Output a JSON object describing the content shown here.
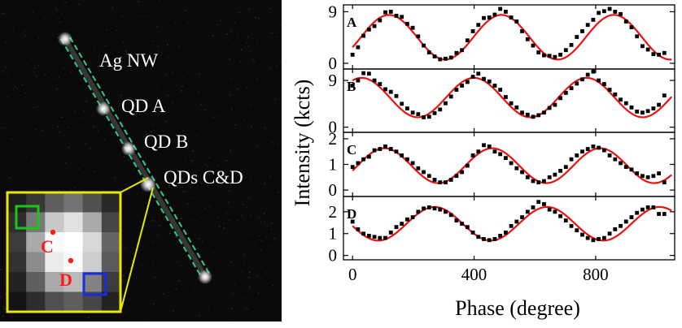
{
  "image": {
    "labels": {
      "nanowire": "Ag NW",
      "qd_a": "QD A",
      "qd_b": "QD B",
      "qd_cd": "QDs C&D",
      "inset_c": "C",
      "inset_d": "D"
    },
    "colors": {
      "nanowire_dash": "#35c98a",
      "inset_frame": "#e8e800",
      "marker": "#ff1a1a",
      "box_c": "#18c718",
      "box_d": "#1a2ae0"
    }
  },
  "chart_data": {
    "type": "scatter",
    "xlabel": "Phase (degree)",
    "ylabel": "Intensity (kcts)",
    "xlim": [
      -30,
      1060
    ],
    "xticks": [
      0,
      400,
      800
    ],
    "fit_color": "#ee1111",
    "point_color": "#000000",
    "panels": [
      {
        "name": "A",
        "ylim": [
          -1,
          10.2
        ],
        "yticks": [
          0,
          9
        ],
        "fit": {
          "offset": 4.55,
          "amplitude": 3.9,
          "period": 370,
          "peak_phase": 120
        },
        "points": [
          [
            0,
            1.5
          ],
          [
            18,
            2.8
          ],
          [
            36,
            4.8
          ],
          [
            54,
            5.9
          ],
          [
            72,
            6.5
          ],
          [
            90,
            7.5
          ],
          [
            108,
            8.9
          ],
          [
            126,
            9.0
          ],
          [
            144,
            8.3
          ],
          [
            162,
            8.1
          ],
          [
            180,
            6.9
          ],
          [
            198,
            6.2
          ],
          [
            216,
            4.7
          ],
          [
            234,
            3.1
          ],
          [
            252,
            1.9
          ],
          [
            270,
            1.2
          ],
          [
            288,
            0.7
          ],
          [
            306,
            0.8
          ],
          [
            324,
            1.0
          ],
          [
            342,
            1.8
          ],
          [
            360,
            2.3
          ],
          [
            378,
            4.0
          ],
          [
            396,
            5.6
          ],
          [
            414,
            6.7
          ],
          [
            432,
            7.9
          ],
          [
            450,
            8.0
          ],
          [
            468,
            8.5
          ],
          [
            486,
            9.5
          ],
          [
            504,
            9.0
          ],
          [
            522,
            8.0
          ],
          [
            540,
            7.3
          ],
          [
            558,
            5.6
          ],
          [
            576,
            4.2
          ],
          [
            594,
            3.1
          ],
          [
            612,
            1.9
          ],
          [
            630,
            1.4
          ],
          [
            648,
            1.3
          ],
          [
            666,
            1.1
          ],
          [
            684,
            1.5
          ],
          [
            702,
            2.3
          ],
          [
            720,
            3.2
          ],
          [
            738,
            4.6
          ],
          [
            756,
            5.6
          ],
          [
            774,
            6.7
          ],
          [
            792,
            7.6
          ],
          [
            810,
            8.8
          ],
          [
            828,
            9.1
          ],
          [
            846,
            9.5
          ],
          [
            864,
            9.0
          ],
          [
            882,
            8.6
          ],
          [
            900,
            7.3
          ],
          [
            918,
            6.3
          ],
          [
            936,
            4.7
          ],
          [
            954,
            3.0
          ],
          [
            972,
            2.4
          ],
          [
            990,
            1.6
          ],
          [
            1008,
            1.5
          ],
          [
            1026,
            1.8
          ]
        ]
      },
      {
        "name": "B",
        "ylim": [
          -1,
          11.2
        ],
        "yticks": [
          0,
          9
        ],
        "fit": {
          "offset": 5.7,
          "amplitude": 3.8,
          "period": 370,
          "peak_phase": 30
        },
        "points": [
          [
            0,
            8.0
          ],
          [
            18,
            9.0
          ],
          [
            36,
            10.4
          ],
          [
            54,
            10.3
          ],
          [
            72,
            9.0
          ],
          [
            90,
            8.3
          ],
          [
            108,
            7.3
          ],
          [
            126,
            6.8
          ],
          [
            144,
            6.0
          ],
          [
            162,
            4.5
          ],
          [
            180,
            3.6
          ],
          [
            198,
            2.8
          ],
          [
            216,
            2.5
          ],
          [
            234,
            1.9
          ],
          [
            252,
            2.0
          ],
          [
            270,
            2.7
          ],
          [
            288,
            3.4
          ],
          [
            306,
            4.6
          ],
          [
            324,
            5.9
          ],
          [
            342,
            7.2
          ],
          [
            360,
            8.0
          ],
          [
            378,
            8.7
          ],
          [
            396,
            9.7
          ],
          [
            414,
            10.3
          ],
          [
            432,
            9.3
          ],
          [
            450,
            8.8
          ],
          [
            468,
            8.0
          ],
          [
            486,
            7.2
          ],
          [
            504,
            5.8
          ],
          [
            522,
            4.6
          ],
          [
            540,
            3.8
          ],
          [
            558,
            2.8
          ],
          [
            576,
            2.4
          ],
          [
            594,
            2.0
          ],
          [
            612,
            2.3
          ],
          [
            630,
            2.8
          ],
          [
            648,
            3.7
          ],
          [
            666,
            4.3
          ],
          [
            684,
            5.6
          ],
          [
            702,
            6.6
          ],
          [
            720,
            7.5
          ],
          [
            738,
            8.4
          ],
          [
            756,
            9.2
          ],
          [
            774,
            10.1
          ],
          [
            792,
            10.7
          ],
          [
            810,
            9.0
          ],
          [
            828,
            8.3
          ],
          [
            846,
            7.2
          ],
          [
            864,
            6.3
          ],
          [
            882,
            5.3
          ],
          [
            900,
            4.6
          ],
          [
            918,
            3.8
          ],
          [
            936,
            3.0
          ],
          [
            954,
            2.8
          ],
          [
            972,
            3.1
          ],
          [
            990,
            3.6
          ],
          [
            1008,
            4.3
          ],
          [
            1026,
            6.1
          ]
        ]
      },
      {
        "name": "C",
        "ylim": [
          -0.25,
          2.25
        ],
        "yticks": [
          0,
          1,
          2
        ],
        "fit": {
          "offset": 0.95,
          "amplitude": 0.68,
          "period": 355,
          "peak_phase": 105
        },
        "points": [
          [
            0,
            0.9
          ],
          [
            18,
            1.05
          ],
          [
            36,
            1.2
          ],
          [
            54,
            1.3
          ],
          [
            72,
            1.55
          ],
          [
            90,
            1.6
          ],
          [
            108,
            1.7
          ],
          [
            126,
            1.6
          ],
          [
            144,
            1.5
          ],
          [
            162,
            1.35
          ],
          [
            180,
            1.2
          ],
          [
            198,
            1.05
          ],
          [
            216,
            0.85
          ],
          [
            234,
            0.7
          ],
          [
            252,
            0.55
          ],
          [
            270,
            0.4
          ],
          [
            288,
            0.3
          ],
          [
            306,
            0.3
          ],
          [
            324,
            0.4
          ],
          [
            342,
            0.55
          ],
          [
            360,
            0.7
          ],
          [
            378,
            0.95
          ],
          [
            396,
            1.35
          ],
          [
            414,
            1.5
          ],
          [
            432,
            1.75
          ],
          [
            450,
            1.7
          ],
          [
            468,
            1.5
          ],
          [
            486,
            1.4
          ],
          [
            504,
            1.25
          ],
          [
            522,
            1.05
          ],
          [
            540,
            0.85
          ],
          [
            558,
            0.7
          ],
          [
            576,
            0.5
          ],
          [
            594,
            0.35
          ],
          [
            612,
            0.3
          ],
          [
            630,
            0.35
          ],
          [
            648,
            0.5
          ],
          [
            666,
            0.6
          ],
          [
            684,
            0.75
          ],
          [
            702,
            0.9
          ],
          [
            720,
            1.2
          ],
          [
            738,
            1.35
          ],
          [
            756,
            1.5
          ],
          [
            774,
            1.6
          ],
          [
            792,
            1.7
          ],
          [
            810,
            1.65
          ],
          [
            828,
            1.55
          ],
          [
            846,
            1.35
          ],
          [
            864,
            1.2
          ],
          [
            882,
            1.05
          ],
          [
            900,
            0.9
          ],
          [
            918,
            0.8
          ],
          [
            936,
            0.65
          ],
          [
            954,
            0.55
          ],
          [
            972,
            0.5
          ],
          [
            990,
            0.55
          ],
          [
            1008,
            0.65
          ],
          [
            1026,
            0.3
          ]
        ]
      },
      {
        "name": "D",
        "ylim": [
          -0.2,
          2.7
        ],
        "yticks": [
          0,
          1,
          2
        ],
        "fit": {
          "offset": 1.45,
          "amplitude": 0.77,
          "period": 370,
          "peak_phase": 270
        },
        "points": [
          [
            0,
            1.55
          ],
          [
            18,
            1.2
          ],
          [
            36,
            1.0
          ],
          [
            54,
            0.9
          ],
          [
            72,
            0.85
          ],
          [
            90,
            0.8
          ],
          [
            108,
            0.8
          ],
          [
            126,
            1.05
          ],
          [
            144,
            1.3
          ],
          [
            162,
            1.45
          ],
          [
            180,
            1.65
          ],
          [
            198,
            1.75
          ],
          [
            216,
            2.0
          ],
          [
            234,
            2.15
          ],
          [
            252,
            2.2
          ],
          [
            270,
            2.15
          ],
          [
            288,
            2.1
          ],
          [
            306,
            2.0
          ],
          [
            324,
            1.85
          ],
          [
            342,
            1.6
          ],
          [
            360,
            1.45
          ],
          [
            378,
            1.3
          ],
          [
            396,
            1.05
          ],
          [
            414,
            0.85
          ],
          [
            432,
            0.75
          ],
          [
            450,
            0.7
          ],
          [
            468,
            0.75
          ],
          [
            486,
            0.9
          ],
          [
            504,
            1.05
          ],
          [
            522,
            1.35
          ],
          [
            540,
            1.55
          ],
          [
            558,
            1.75
          ],
          [
            576,
            2.0
          ],
          [
            594,
            2.2
          ],
          [
            612,
            2.45
          ],
          [
            630,
            2.35
          ],
          [
            648,
            2.1
          ],
          [
            666,
            2.0
          ],
          [
            684,
            1.8
          ],
          [
            702,
            1.6
          ],
          [
            720,
            1.35
          ],
          [
            738,
            1.15
          ],
          [
            756,
            0.95
          ],
          [
            774,
            0.8
          ],
          [
            792,
            0.7
          ],
          [
            810,
            0.75
          ],
          [
            828,
            0.8
          ],
          [
            846,
            1.0
          ],
          [
            864,
            1.2
          ],
          [
            882,
            1.35
          ],
          [
            900,
            1.55
          ],
          [
            918,
            1.75
          ],
          [
            936,
            1.95
          ],
          [
            954,
            2.1
          ],
          [
            972,
            2.2
          ],
          [
            990,
            2.2
          ],
          [
            1008,
            1.9
          ],
          [
            1026,
            1.9
          ]
        ]
      }
    ]
  }
}
